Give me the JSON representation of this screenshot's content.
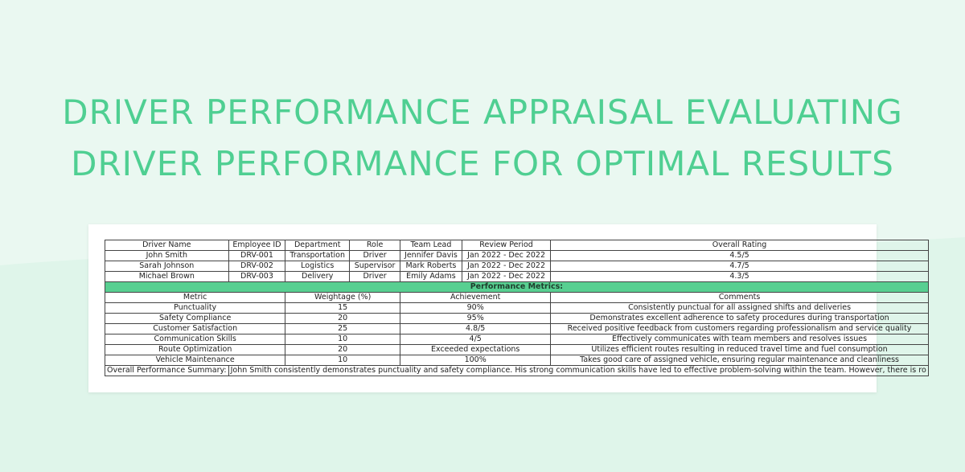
{
  "title": {
    "line1": "DRIVER PERFORMANCE APPRAISAL EVALUATING",
    "line2": "DRIVER PERFORMANCE FOR OPTIMAL RESULTS"
  },
  "drivers": {
    "headers": [
      "Driver Name",
      "Employee ID",
      "Department",
      "Role",
      "Team Lead",
      "Review Period",
      "Overall Rating"
    ],
    "rows": [
      [
        "John Smith",
        "DRV-001",
        "Transportation",
        "Driver",
        "Jennifer Davis",
        "Jan 2022 - Dec 2022",
        "4.5/5"
      ],
      [
        "Sarah Johnson",
        "DRV-002",
        "Logistics",
        "Supervisor",
        "Mark Roberts",
        "Jan 2022 - Dec 2022",
        "4.7/5"
      ],
      [
        "Michael Brown",
        "DRV-003",
        "Delivery",
        "Driver",
        "Emily Adams",
        "Jan 2022 - Dec 2022",
        "4.3/5"
      ]
    ]
  },
  "metrics": {
    "band_label": "Performance Metrics:",
    "headers": [
      "Metric",
      "Weightage (%)",
      "Achievement",
      "Comments"
    ],
    "rows": [
      [
        "Punctuality",
        "15",
        "90%",
        "Consistently punctual for all assigned shifts and deliveries"
      ],
      [
        "Safety Compliance",
        "20",
        "95%",
        "Demonstrates excellent adherence to safety procedures during transportation"
      ],
      [
        "Customer Satisfaction",
        "25",
        "4.8/5",
        "Received positive feedback from customers regarding professionalism and service quality"
      ],
      [
        "Communication Skills",
        "10",
        "4/5",
        "Effectively communicates with team members and resolves issues"
      ],
      [
        "Route Optimization",
        "20",
        "Exceeded expectations",
        "Utilizes efficient routes resulting in reduced travel time and fuel consumption"
      ],
      [
        "Vehicle Maintenance",
        "10",
        "100%",
        "Takes good care of assigned vehicle, ensuring regular maintenance and cleanliness"
      ]
    ]
  },
  "summary": {
    "label": "Overall Performance Summary:",
    "text": "John Smith consistently demonstrates punctuality and safety compliance. His strong communication skills have led to effective problem-solving within the team. However, there is ro"
  },
  "colors": {
    "background": "#eaf8f1",
    "title": "#4fcf92",
    "band": "#58cf91"
  }
}
